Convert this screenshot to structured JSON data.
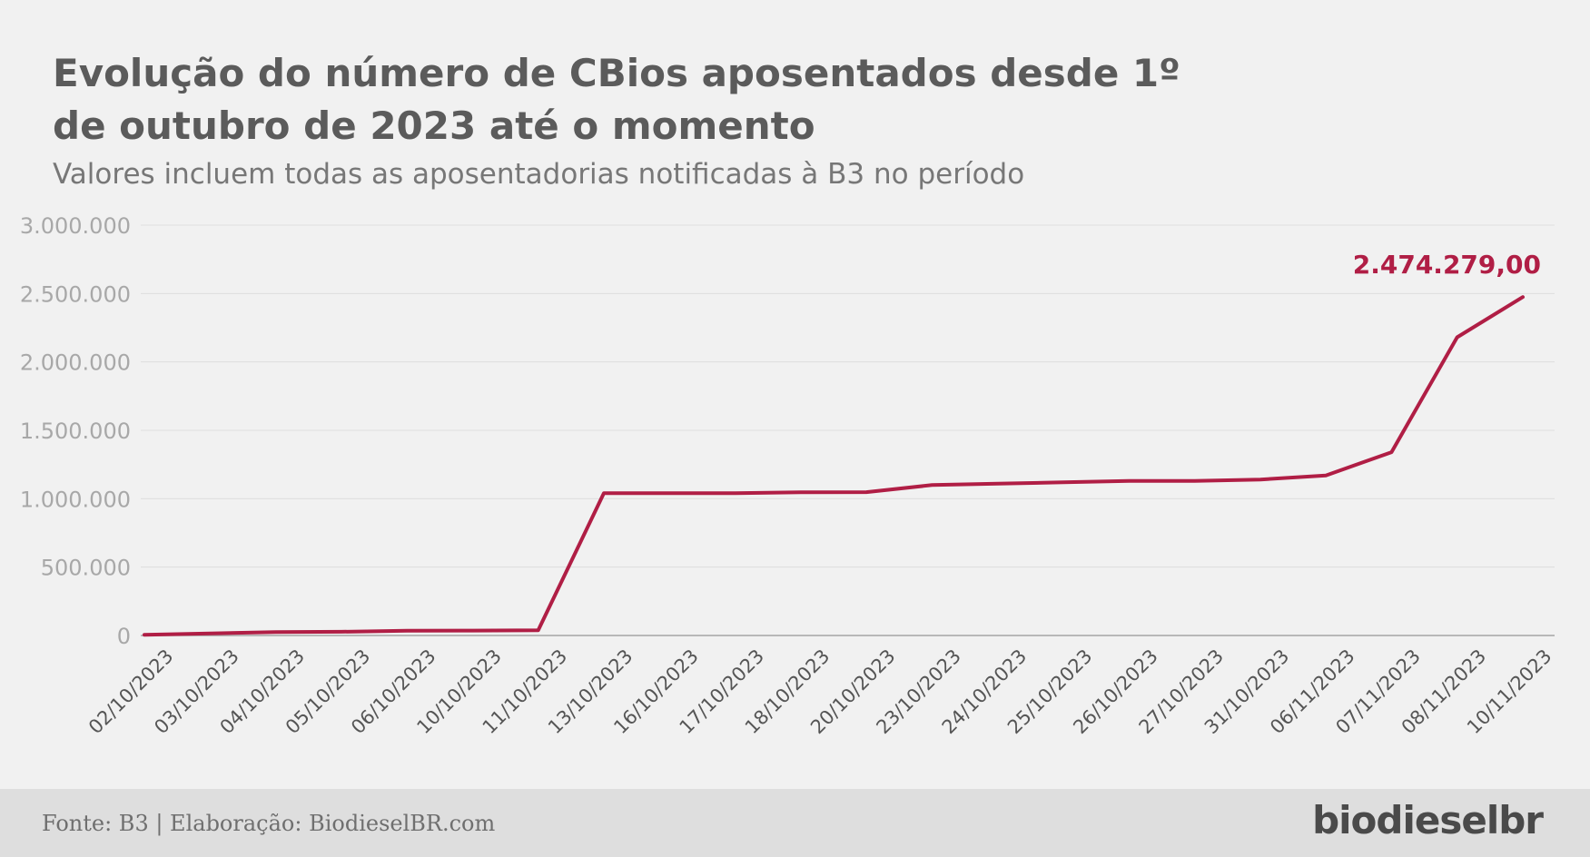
{
  "header": {
    "title": "Evolução do número de CBios aposentados desde 1º de outubro de 2023 até o momento",
    "subtitle": "Valores incluem todas as aposentadorias notificadas à B3 no período"
  },
  "footer": {
    "source": "Fonte: B3 | Elaboração: BiodieselBR.com",
    "logo": "biodieselbr"
  },
  "colors": {
    "line": "#b01e45",
    "grid": "#dedede",
    "axis": "#a6a6a6",
    "tick_text": "#a8a8a8",
    "category_text": "#555555"
  },
  "chart_data": {
    "type": "line",
    "categories": [
      "02/10/2023",
      "03/10/2023",
      "04/10/2023",
      "05/10/2023",
      "06/10/2023",
      "10/10/2023",
      "11/10/2023",
      "13/10/2023",
      "16/10/2023",
      "17/10/2023",
      "18/10/2023",
      "20/10/2023",
      "23/10/2023",
      "24/10/2023",
      "25/10/2023",
      "26/10/2023",
      "27/10/2023",
      "31/10/2023",
      "06/11/2023",
      "07/11/2023",
      "08/11/2023",
      "10/11/2023"
    ],
    "series": [
      {
        "values": [
          5000,
          15000,
          25000,
          27000,
          35000,
          36000,
          38000,
          1040000,
          1040000,
          1040000,
          1047000,
          1048000,
          1100000,
          1110000,
          1120000,
          1130000,
          1130000,
          1140000,
          1170000,
          1340000,
          2180000,
          2474279
        ]
      }
    ],
    "ylim": [
      0,
      3000000
    ],
    "yticks": [
      0,
      500000,
      1000000,
      1500000,
      2000000,
      2500000,
      3000000
    ],
    "ytick_labels": [
      "0",
      "500.000",
      "1.000.000",
      "1.500.000",
      "2.000.000",
      "2.500.000",
      "3.000.000"
    ],
    "grid": true,
    "annotation": {
      "category": "10/11/2023",
      "text": "2.474.279,00"
    }
  }
}
